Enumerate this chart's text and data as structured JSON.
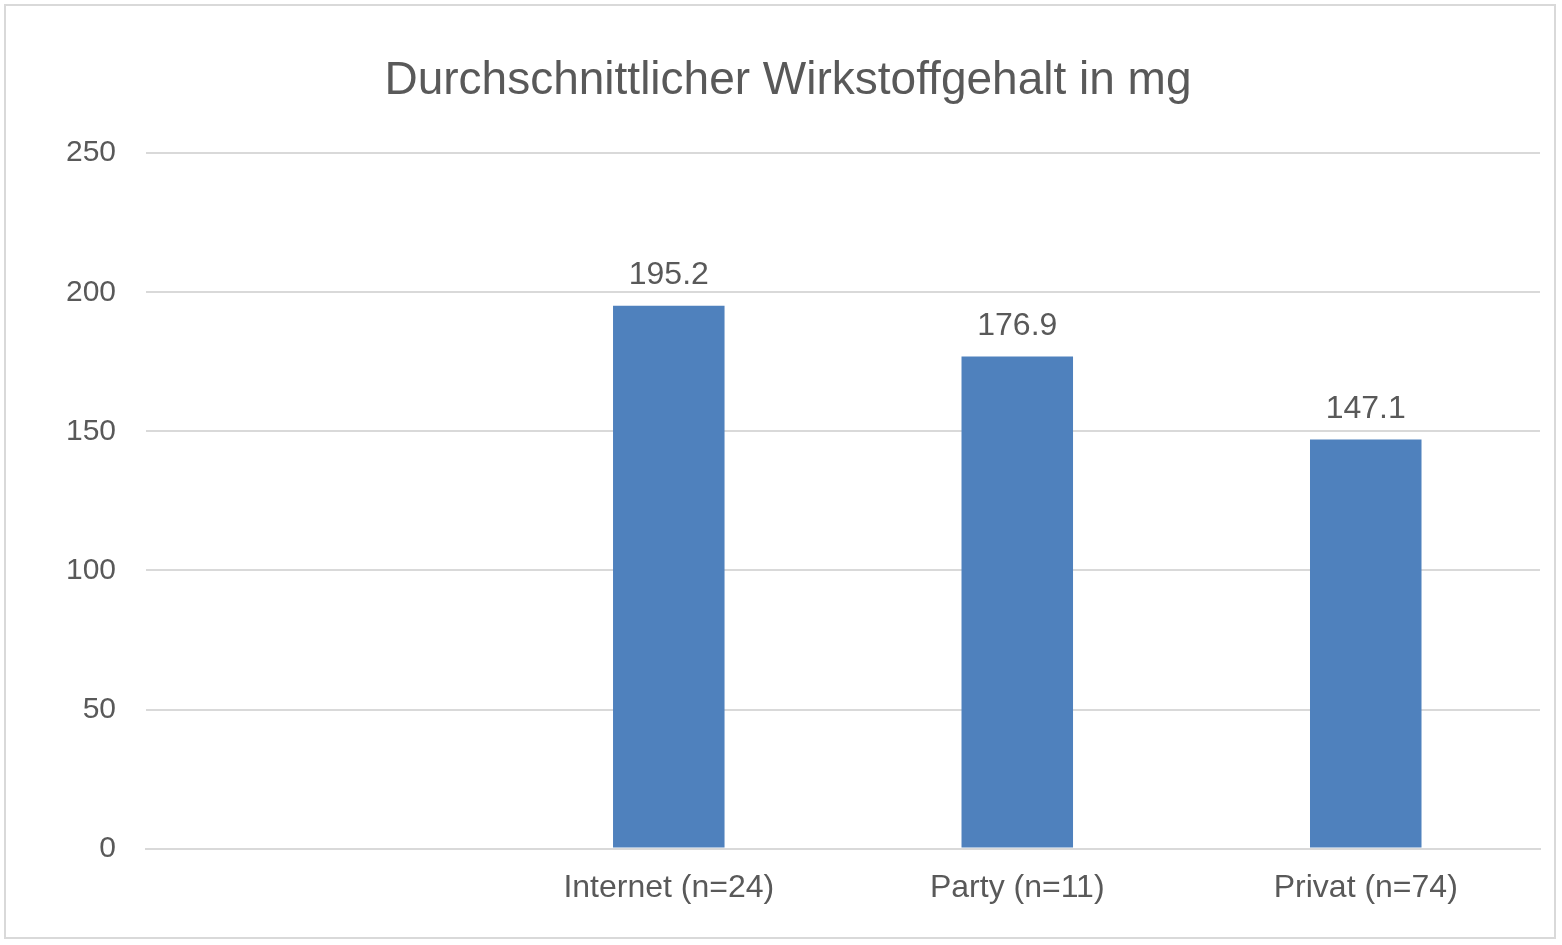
{
  "chart_data": {
    "type": "bar",
    "title": "Durchschnittlicher Wirkstoffgehalt in mg",
    "categories": [
      null,
      "Internet (n=24)",
      "Party (n=11)",
      "Privat (n=74)"
    ],
    "values": [
      null,
      195.2,
      176.9,
      147.1
    ],
    "color": "#4f81bd",
    "ylim": [
      0,
      250
    ],
    "yticks": [
      0,
      50,
      100,
      150,
      200,
      250
    ],
    "grid": "y",
    "data_labels": true,
    "legend": false
  }
}
